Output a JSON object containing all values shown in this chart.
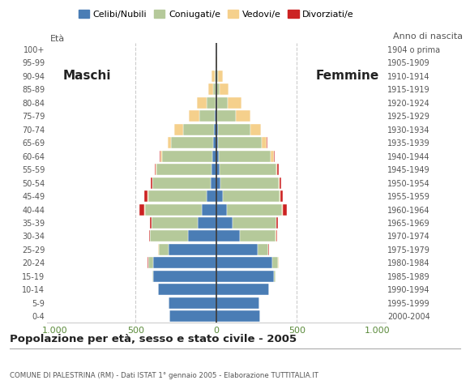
{
  "title": "Popolazione per età, sesso e stato civile - 2005",
  "subtitle": "COMUNE DI PALESTRINA (RM) - Dati ISTAT 1° gennaio 2005 - Elaborazione TUTTITALIA.IT",
  "ylabel_left": "Età",
  "ylabel_right": "Anno di nascita",
  "xlabel_left": "Maschi",
  "xlabel_right": "Femmine",
  "xlim": 1050,
  "colors": {
    "celibi": "#4a7db5",
    "coniugati": "#b5c99a",
    "vedovi": "#f5d08c",
    "divorziati": "#cc2222"
  },
  "legend_labels": [
    "Celibi/Nubili",
    "Coniugati/e",
    "Vedovi/e",
    "Divorziati/e"
  ],
  "age_groups": [
    "0-4",
    "5-9",
    "10-14",
    "15-19",
    "20-24",
    "25-29",
    "30-34",
    "35-39",
    "40-44",
    "45-49",
    "50-54",
    "55-59",
    "60-64",
    "65-69",
    "70-74",
    "75-79",
    "80-84",
    "85-89",
    "90-94",
    "95-99",
    "100+"
  ],
  "birth_years": [
    "2000-2004",
    "1995-1999",
    "1990-1994",
    "1985-1989",
    "1980-1984",
    "1975-1979",
    "1970-1974",
    "1965-1969",
    "1960-1964",
    "1955-1959",
    "1950-1954",
    "1945-1949",
    "1940-1944",
    "1935-1939",
    "1930-1934",
    "1925-1929",
    "1920-1924",
    "1915-1919",
    "1910-1914",
    "1905-1909",
    "1904 o prima"
  ],
  "males": {
    "celibi": [
      290,
      295,
      360,
      390,
      390,
      295,
      175,
      115,
      88,
      58,
      33,
      28,
      22,
      18,
      13,
      7,
      4,
      3,
      2,
      0,
      0
    ],
    "coniugati": [
      0,
      0,
      0,
      5,
      30,
      62,
      235,
      285,
      355,
      365,
      362,
      342,
      312,
      262,
      192,
      100,
      55,
      15,
      5,
      1,
      0
    ],
    "vedovi": [
      0,
      0,
      0,
      0,
      2,
      2,
      2,
      2,
      2,
      2,
      3,
      5,
      12,
      20,
      55,
      65,
      60,
      30,
      20,
      2,
      0
    ],
    "divorziati": [
      0,
      0,
      0,
      0,
      2,
      3,
      5,
      10,
      30,
      20,
      8,
      6,
      5,
      2,
      0,
      0,
      0,
      0,
      0,
      0,
      0
    ]
  },
  "females": {
    "nubili": [
      275,
      270,
      330,
      360,
      350,
      258,
      148,
      100,
      68,
      43,
      26,
      20,
      16,
      13,
      10,
      6,
      4,
      3,
      2,
      0,
      0
    ],
    "coniugate": [
      0,
      0,
      0,
      8,
      35,
      65,
      222,
      272,
      342,
      352,
      362,
      352,
      322,
      272,
      202,
      115,
      65,
      18,
      8,
      1,
      0
    ],
    "vedove": [
      0,
      0,
      0,
      0,
      2,
      2,
      2,
      3,
      3,
      3,
      5,
      8,
      18,
      30,
      65,
      90,
      90,
      55,
      30,
      3,
      0
    ],
    "divorziate": [
      0,
      0,
      0,
      0,
      2,
      3,
      5,
      10,
      25,
      15,
      12,
      10,
      8,
      5,
      2,
      2,
      0,
      0,
      0,
      0,
      0
    ]
  },
  "background_color": "#ffffff",
  "bar_height": 0.85,
  "tick_color": "#5a8a3a",
  "grid_color": "#cccccc"
}
